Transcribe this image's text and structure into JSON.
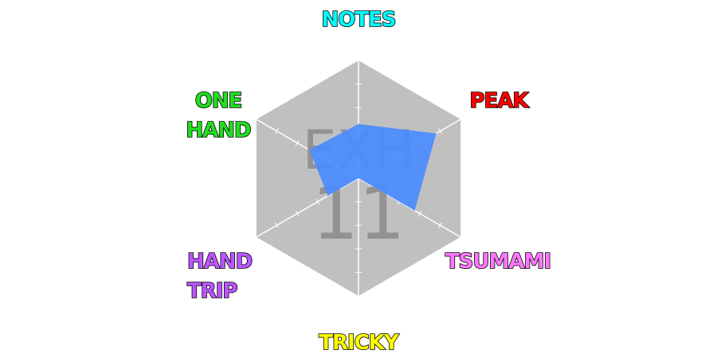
{
  "chart_data": {
    "type": "radar",
    "title": "",
    "difficulty": "EXH",
    "level": "11",
    "max_value": 1.0,
    "axes": [
      {
        "label_lines": [
          "NOTES"
        ],
        "color": "#00ffff",
        "value": 0.46
      },
      {
        "label_lines": [
          "PEAK"
        ],
        "color": "#ff0000",
        "value": 0.76
      },
      {
        "label_lines": [
          "TSUMAMI"
        ],
        "color": "#ff77ff",
        "value": 0.55
      },
      {
        "label_lines": [
          "TRICKY"
        ],
        "color": "#ffff00",
        "value": 0.0
      },
      {
        "label_lines": [
          "HAND",
          "TRIP"
        ],
        "color": "#bb55ff",
        "value": 0.3
      },
      {
        "label_lines": [
          "ONE",
          "HAND"
        ],
        "color": "#22dd22",
        "value": 0.48
      }
    ],
    "ticks_per_axis": 4,
    "grid": true,
    "colors": {
      "background_hexagon": "#c0c0c0",
      "grid_lines": "#ffffff",
      "value_fill": "#4a8cff"
    }
  }
}
